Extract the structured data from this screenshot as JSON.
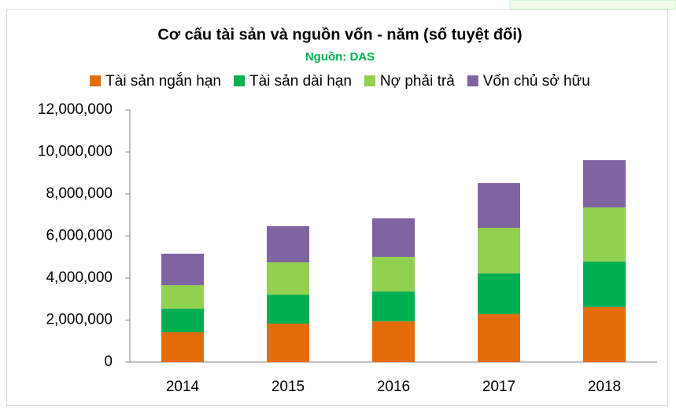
{
  "chart_data": {
    "type": "stacked_bar",
    "title": "Cơ cấu tài sản và nguồn vốn - năm (số tuyệt đối)",
    "subtitle": "Nguồn: DAS",
    "categories": [
      "2014",
      "2015",
      "2016",
      "2017",
      "2018"
    ],
    "series": [
      {
        "name": "Tài sản ngắn hạn",
        "color": "#e46c0a",
        "values": [
          1420000,
          1830000,
          1940000,
          2280000,
          2620000
        ]
      },
      {
        "name": "Tài sản dài hạn",
        "color": "#00b050",
        "values": [
          1120000,
          1380000,
          1420000,
          1940000,
          2170000
        ]
      },
      {
        "name": "Nợ phải trả",
        "color": "#92d050",
        "values": [
          1120000,
          1540000,
          1650000,
          2170000,
          2570000
        ]
      },
      {
        "name": "Vốn chủ sở hữu",
        "color": "#8064a2",
        "values": [
          1500000,
          1720000,
          1830000,
          2130000,
          2250000
        ]
      }
    ],
    "ylim": [
      0,
      12000000
    ],
    "yticks": [
      0,
      {
        "value": 2000000,
        "label": "2,000,000"
      },
      {
        "value": 4000000,
        "label": "4,000,000"
      },
      {
        "value": 6000000,
        "label": "6,000,000"
      },
      {
        "value": 8000000,
        "label": "8,000,000"
      },
      {
        "value": 10000000,
        "label": "10,000,000"
      },
      {
        "value": 12000000,
        "label": "12,000,000"
      }
    ],
    "legend": "top"
  }
}
